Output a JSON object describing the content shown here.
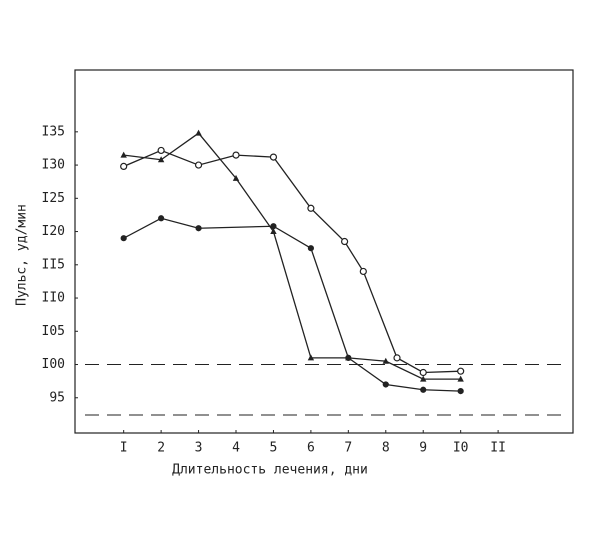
{
  "chart_data": {
    "type": "line",
    "xlabel": "Длительность лечения, дни",
    "ylabel": "Пульс, уд/мин",
    "xlim": [
      -0.3,
      13
    ],
    "ylim": [
      89.7,
      144.3
    ],
    "xticks": [
      {
        "value": 1,
        "label": "I"
      },
      2,
      3,
      4,
      5,
      6,
      7,
      8,
      9,
      {
        "value": 10,
        "label": "I0"
      },
      {
        "value": 11,
        "label": "II"
      }
    ],
    "yticks": [
      95,
      {
        "value": 100,
        "label": "I00"
      },
      {
        "value": 105,
        "label": "I05"
      },
      {
        "value": 110,
        "label": "II0"
      },
      {
        "value": 115,
        "label": "II5"
      },
      {
        "value": 120,
        "label": "I20"
      },
      {
        "value": 125,
        "label": "I25"
      },
      {
        "value": 130,
        "label": "I30"
      },
      {
        "value": 135,
        "label": "I35"
      }
    ],
    "reference_lines": [
      100,
      92.4
    ],
    "series": [
      {
        "color": "#222",
        "marker": "circle-open",
        "x": [
          1,
          2,
          3,
          4,
          5,
          6,
          6.9,
          7.4,
          8.3,
          9,
          10
        ],
        "values": [
          129.8,
          132.2,
          130,
          131.5,
          131.2,
          123.5,
          118.5,
          114,
          101,
          98.8,
          99
        ]
      },
      {
        "color": "#222",
        "marker": "circle",
        "x": [
          1,
          2,
          3,
          5,
          6,
          7,
          8,
          9,
          10
        ],
        "values": [
          119,
          122,
          120.5,
          120.8,
          117.5,
          101,
          97,
          96.2,
          96
        ]
      },
      {
        "color": "#222",
        "marker": "triangle",
        "x": [
          1,
          2,
          3,
          4,
          5,
          6,
          7,
          8,
          9,
          10
        ],
        "values": [
          131.5,
          130.8,
          134.8,
          128,
          120,
          101,
          101,
          100.5,
          97.8,
          97.8
        ]
      }
    ]
  }
}
